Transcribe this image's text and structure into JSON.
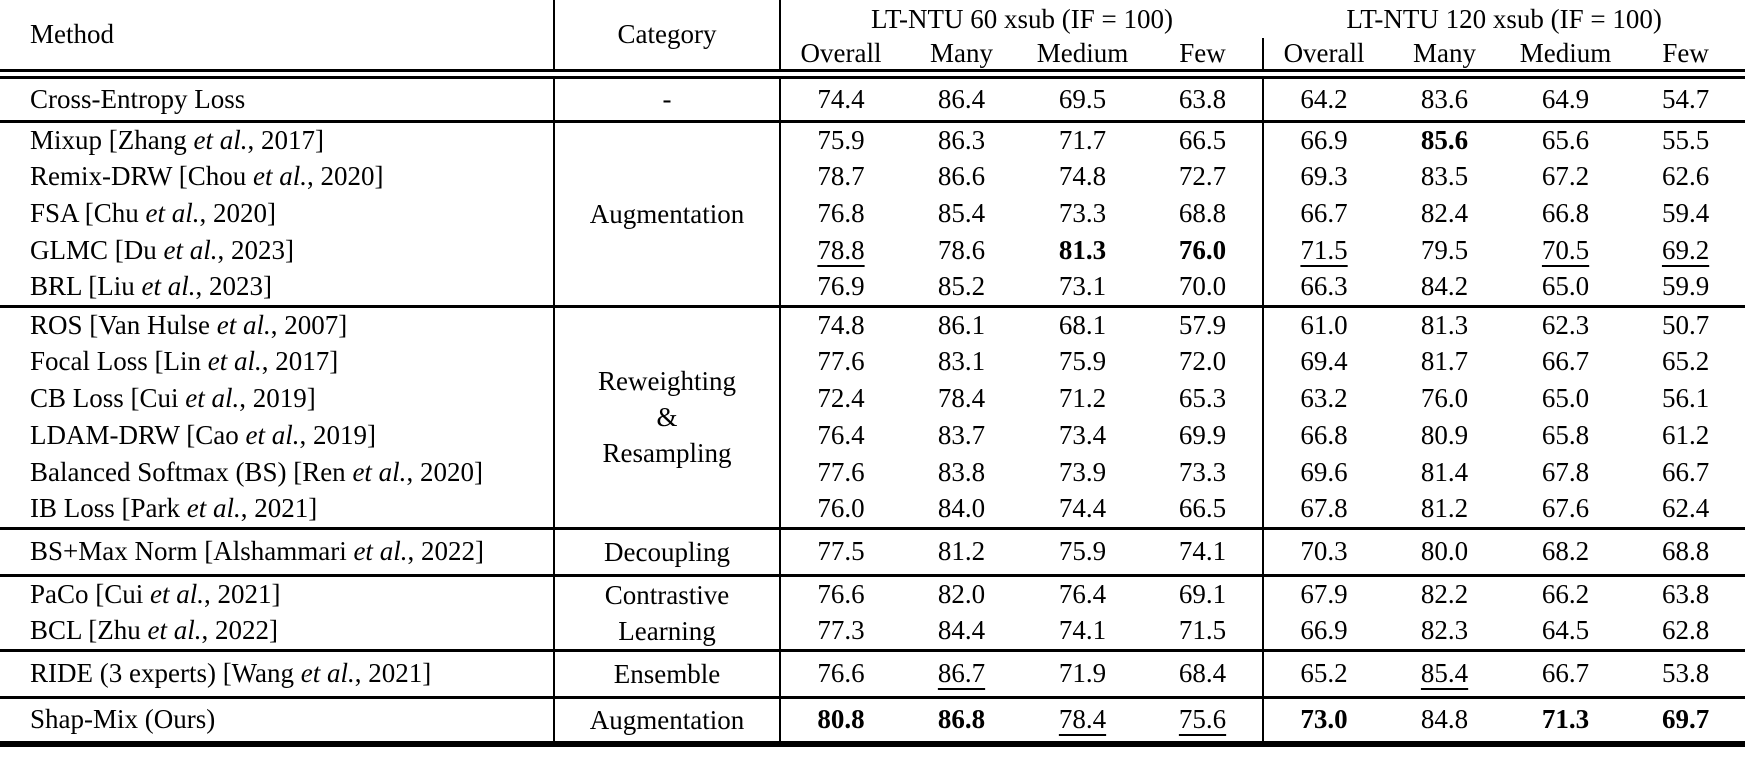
{
  "colors": {
    "background": "#ffffff",
    "text": "#000000",
    "rule": "#000000"
  },
  "table": {
    "header": {
      "method_label": "Method",
      "category_label": "Category",
      "groups": [
        {
          "title": "LT-NTU 60 xsub (IF = 100)",
          "cols": [
            "Overall",
            "Many",
            "Medium",
            "Few"
          ]
        },
        {
          "title": "LT-NTU 120 xsub (IF = 100)",
          "cols": [
            "Overall",
            "Many",
            "Medium",
            "Few"
          ]
        }
      ]
    },
    "sections": [
      {
        "category_lines": [
          "-"
        ],
        "rows": [
          {
            "m1": "Cross-Entropy Loss",
            "m2": "",
            "m3": "",
            "values": [
              "74.4",
              "86.4",
              "69.5",
              "63.8",
              "64.2",
              "83.6",
              "64.9",
              "54.7"
            ],
            "styles": [
              "",
              "",
              "",
              "",
              "",
              "",
              "",
              ""
            ]
          }
        ]
      },
      {
        "category_lines": [
          "Augmentation"
        ],
        "rows": [
          {
            "m1": "Mixup [Zhang ",
            "m2": "et al.",
            "m3": ", 2017]",
            "values": [
              "75.9",
              "86.3",
              "71.7",
              "66.5",
              "66.9",
              "85.6",
              "65.6",
              "55.5"
            ],
            "styles": [
              "",
              "",
              "",
              "",
              "",
              "b",
              "",
              ""
            ]
          },
          {
            "m1": "Remix-DRW [Chou ",
            "m2": "et al.",
            "m3": ", 2020]",
            "values": [
              "78.7",
              "86.6",
              "74.8",
              "72.7",
              "69.3",
              "83.5",
              "67.2",
              "62.6"
            ],
            "styles": [
              "",
              "",
              "",
              "",
              "",
              "",
              "",
              ""
            ]
          },
          {
            "m1": "FSA [Chu ",
            "m2": "et al.",
            "m3": ", 2020]",
            "values": [
              "76.8",
              "85.4",
              "73.3",
              "68.8",
              "66.7",
              "82.4",
              "66.8",
              "59.4"
            ],
            "styles": [
              "",
              "",
              "",
              "",
              "",
              "",
              "",
              ""
            ]
          },
          {
            "m1": "GLMC [Du ",
            "m2": "et al.",
            "m3": ", 2023]",
            "values": [
              "78.8",
              "78.6",
              "81.3",
              "76.0",
              "71.5",
              "79.5",
              "70.5",
              "69.2"
            ],
            "styles": [
              "u",
              "",
              "b",
              "b",
              "u",
              "",
              "u",
              "u"
            ]
          },
          {
            "m1": "BRL [Liu ",
            "m2": "et al.",
            "m3": ", 2023]",
            "values": [
              "76.9",
              "85.2",
              "73.1",
              "70.0",
              "66.3",
              "84.2",
              "65.0",
              "59.9"
            ],
            "styles": [
              "",
              "",
              "",
              "",
              "",
              "",
              "",
              ""
            ]
          }
        ]
      },
      {
        "category_lines": [
          "Reweighting",
          "&",
          "Resampling"
        ],
        "rows": [
          {
            "m1": "ROS [Van Hulse ",
            "m2": "et al.",
            "m3": ", 2007]",
            "values": [
              "74.8",
              "86.1",
              "68.1",
              "57.9",
              "61.0",
              "81.3",
              "62.3",
              "50.7"
            ],
            "styles": [
              "",
              "",
              "",
              "",
              "",
              "",
              "",
              ""
            ]
          },
          {
            "m1": "Focal Loss [Lin ",
            "m2": "et al.",
            "m3": ", 2017]",
            "values": [
              "77.6",
              "83.1",
              "75.9",
              "72.0",
              "69.4",
              "81.7",
              "66.7",
              "65.2"
            ],
            "styles": [
              "",
              "",
              "",
              "",
              "",
              "",
              "",
              ""
            ]
          },
          {
            "m1": "CB Loss [Cui ",
            "m2": "et al.",
            "m3": ", 2019]",
            "values": [
              "72.4",
              "78.4",
              "71.2",
              "65.3",
              "63.2",
              "76.0",
              "65.0",
              "56.1"
            ],
            "styles": [
              "",
              "",
              "",
              "",
              "",
              "",
              "",
              ""
            ]
          },
          {
            "m1": "LDAM-DRW [Cao ",
            "m2": "et al.",
            "m3": ", 2019]",
            "values": [
              "76.4",
              "83.7",
              "73.4",
              "69.9",
              "66.8",
              "80.9",
              "65.8",
              "61.2"
            ],
            "styles": [
              "",
              "",
              "",
              "",
              "",
              "",
              "",
              ""
            ]
          },
          {
            "m1": "Balanced Softmax (BS) [Ren ",
            "m2": "et al.",
            "m3": ", 2020]",
            "values": [
              "77.6",
              "83.8",
              "73.9",
              "73.3",
              "69.6",
              "81.4",
              "67.8",
              "66.7"
            ],
            "styles": [
              "",
              "",
              "",
              "",
              "",
              "",
              "",
              ""
            ]
          },
          {
            "m1": "IB Loss [Park ",
            "m2": "et al.",
            "m3": ", 2021]",
            "values": [
              "76.0",
              "84.0",
              "74.4",
              "66.5",
              "67.8",
              "81.2",
              "67.6",
              "62.4"
            ],
            "styles": [
              "",
              "",
              "",
              "",
              "",
              "",
              "",
              ""
            ]
          }
        ]
      },
      {
        "category_lines": [
          "Decoupling"
        ],
        "rows": [
          {
            "m1": "BS+Max Norm [Alshammari ",
            "m2": "et al.",
            "m3": ", 2022]",
            "values": [
              "77.5",
              "81.2",
              "75.9",
              "74.1",
              "70.3",
              "80.0",
              "68.2",
              "68.8"
            ],
            "styles": [
              "",
              "",
              "",
              "",
              "",
              "",
              "",
              ""
            ]
          }
        ]
      },
      {
        "category_lines": [
          "Contrastive",
          "Learning"
        ],
        "rows": [
          {
            "m1": "PaCo [Cui ",
            "m2": "et al.",
            "m3": ", 2021]",
            "values": [
              "76.6",
              "82.0",
              "76.4",
              "69.1",
              "67.9",
              "82.2",
              "66.2",
              "63.8"
            ],
            "styles": [
              "",
              "",
              "",
              "",
              "",
              "",
              "",
              ""
            ]
          },
          {
            "m1": "BCL [Zhu ",
            "m2": "et al.",
            "m3": ", 2022]",
            "values": [
              "77.3",
              "84.4",
              "74.1",
              "71.5",
              "66.9",
              "82.3",
              "64.5",
              "62.8"
            ],
            "styles": [
              "",
              "",
              "",
              "",
              "",
              "",
              "",
              ""
            ]
          }
        ]
      },
      {
        "category_lines": [
          "Ensemble"
        ],
        "rows": [
          {
            "m1": "RIDE (3 experts) [Wang ",
            "m2": "et al.",
            "m3": ", 2021]",
            "values": [
              "76.6",
              "86.7",
              "71.9",
              "68.4",
              "65.2",
              "85.4",
              "66.7",
              "53.8"
            ],
            "styles": [
              "",
              "u",
              "",
              "",
              "",
              "u",
              "",
              ""
            ]
          }
        ]
      },
      {
        "category_lines": [
          "Augmentation"
        ],
        "rows": [
          {
            "m1": "Shap-Mix (Ours)",
            "m2": "",
            "m3": "",
            "values": [
              "80.8",
              "86.8",
              "78.4",
              "75.6",
              "73.0",
              "84.8",
              "71.3",
              "69.7"
            ],
            "styles": [
              "b",
              "b",
              "u",
              "u",
              "b",
              "",
              "b",
              "b"
            ]
          }
        ]
      }
    ]
  }
}
